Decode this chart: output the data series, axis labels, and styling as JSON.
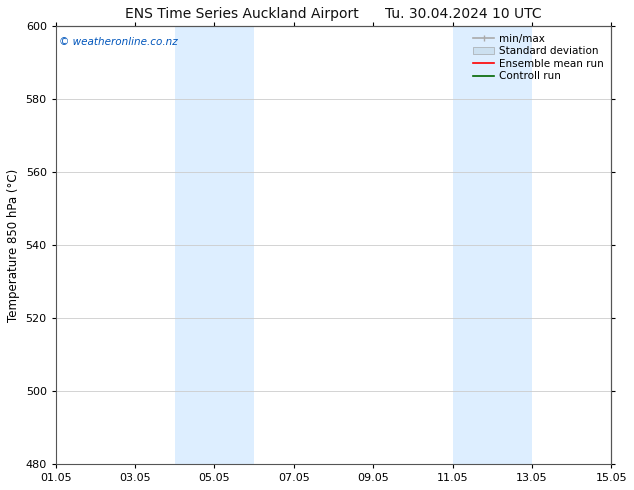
{
  "title_left": "ENS Time Series Auckland Airport",
  "title_right": "Tu. 30.04.2024 10 UTC",
  "ylabel": "Temperature 850 hPa (°C)",
  "watermark": "© weatheronline.co.nz",
  "watermark_color": "#0055bb",
  "xlim_start": 0,
  "xlim_end": 14,
  "ylim_bottom": 480,
  "ylim_top": 600,
  "yticks": [
    480,
    500,
    520,
    540,
    560,
    580,
    600
  ],
  "xtick_positions": [
    0,
    2,
    4,
    6,
    8,
    10,
    12,
    14
  ],
  "xtick_labels": [
    "01.05",
    "03.05",
    "05.05",
    "07.05",
    "09.05",
    "11.05",
    "13.05",
    "15.05"
  ],
  "shaded_regions": [
    {
      "x_start": 3.0,
      "x_end": 5.0,
      "color": "#ddeeff"
    },
    {
      "x_start": 10.0,
      "x_end": 12.0,
      "color": "#ddeeff"
    }
  ],
  "legend_items": [
    {
      "label": "min/max",
      "color": "#aaaaaa",
      "lw": 1.2,
      "style": "line_with_caps"
    },
    {
      "label": "Standard deviation",
      "color": "#cce0f0",
      "lw": 8,
      "style": "thick"
    },
    {
      "label": "Ensemble mean run",
      "color": "#ff0000",
      "lw": 1.2,
      "style": "line"
    },
    {
      "label": "Controll run",
      "color": "#006600",
      "lw": 1.2,
      "style": "line"
    }
  ],
  "background_color": "#ffffff",
  "plot_bg_color": "#ffffff",
  "grid_color": "#cccccc",
  "title_fontsize": 10,
  "label_fontsize": 8.5,
  "tick_fontsize": 8,
  "legend_fontsize": 7.5,
  "watermark_fontsize": 7.5
}
